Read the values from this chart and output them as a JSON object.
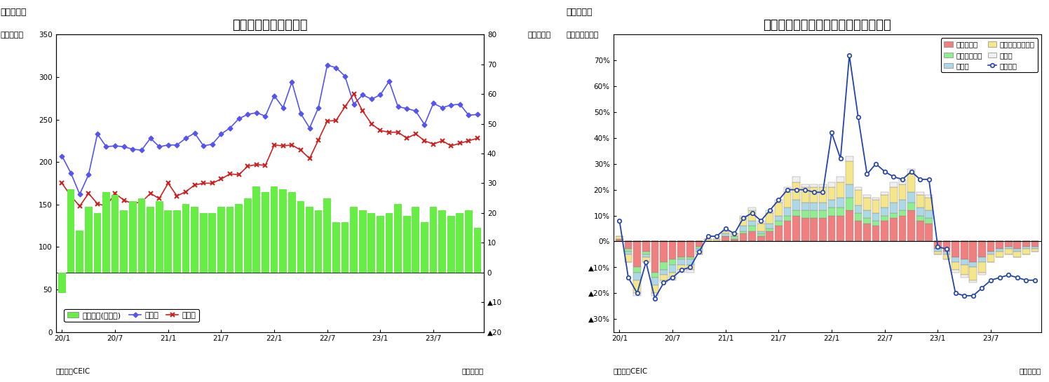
{
  "chart1": {
    "title": "マレーシア　貳易収支",
    "subtitle": "（図表７）",
    "ylabel_left": "（億ドル）",
    "ylabel_right": "（億ドル）",
    "xlabel": "（年／月）",
    "source": "（資料）CEIC",
    "ylim_left": [
      0,
      350
    ],
    "ylim_right": [
      -20,
      80
    ],
    "yticks_left": [
      0,
      50,
      100,
      150,
      200,
      250,
      300,
      350
    ],
    "yticks_right": [
      -20,
      -10,
      0,
      10,
      20,
      30,
      40,
      50,
      60,
      70,
      80
    ],
    "yticklabels_right": [
      "∆ 20",
      "∆ 10",
      "0",
      "10",
      "20",
      "30",
      "40",
      "50",
      "60",
      "70",
      "80"
    ],
    "xtick_positions": [
      0,
      6,
      12,
      18,
      24,
      30,
      36,
      42
    ],
    "xtick_labels": [
      "20/1",
      "20/7",
      "21/1",
      "21/7",
      "22/1",
      "22/7",
      "23/1",
      "23/7"
    ],
    "trade_balance": [
      -7,
      28,
      14,
      22,
      20,
      27,
      26,
      21,
      24,
      25,
      22,
      24,
      21,
      21,
      23,
      22,
      20,
      20,
      22,
      22,
      23,
      25,
      29,
      27,
      29,
      28,
      27,
      24,
      22,
      21,
      25,
      17,
      17,
      22,
      21,
      20,
      19,
      20,
      23,
      19,
      22,
      17,
      22,
      21,
      19,
      20,
      21,
      15
    ],
    "exports": [
      207,
      187,
      162,
      185,
      233,
      218,
      219,
      218,
      215,
      214,
      228,
      218,
      220,
      220,
      228,
      234,
      219,
      221,
      233,
      240,
      251,
      256,
      258,
      254,
      278,
      264,
      294,
      257,
      240,
      264,
      314,
      311,
      301,
      268,
      279,
      274,
      279,
      295,
      265,
      263,
      260,
      244,
      269,
      264,
      267,
      268,
      255,
      256
    ],
    "imports": [
      175,
      160,
      148,
      163,
      151,
      148,
      163,
      155,
      151,
      153,
      163,
      157,
      175,
      160,
      165,
      173,
      175,
      175,
      180,
      186,
      185,
      195,
      197,
      196,
      220,
      219,
      220,
      214,
      204,
      226,
      248,
      249,
      265,
      280,
      260,
      245,
      237,
      235,
      235,
      228,
      233,
      225,
      221,
      225,
      219,
      222,
      225,
      228
    ],
    "bar_color": "#66ee44",
    "export_color": "#5555ee",
    "import_color": "#cc2222",
    "legend_bar": "貳易収支(右目盛)",
    "legend_export": "輸出顕",
    "legend_import": "輸入顕"
  },
  "chart2": {
    "title": "マレーシア　輸出の伸び率（品目別）",
    "subtitle": "（図表８）",
    "ylabel_left": "（前年同月比）",
    "xlabel": "（年／月）",
    "source": "（資料）CEIC",
    "ylim": [
      -35,
      80
    ],
    "yticks": [
      -30,
      -20,
      -10,
      0,
      10,
      20,
      30,
      40,
      50,
      60,
      70
    ],
    "yticklabels": [
      "≆30%",
      "≆20%",
      "≆10%",
      "0%",
      "10%",
      "20%",
      "30%",
      "40%",
      "50%",
      "60%",
      "70%"
    ],
    "xtick_positions": [
      0,
      6,
      12,
      18,
      24,
      30,
      36,
      42
    ],
    "xtick_labels": [
      "20/1",
      "20/7",
      "21/1",
      "21/7",
      "22/1",
      "22/7",
      "23/1",
      "23/7"
    ],
    "mineral_fuels": [
      1,
      -3,
      -10,
      -4,
      -12,
      -8,
      -7,
      -6,
      -6,
      -2,
      0,
      0,
      2,
      1,
      3,
      4,
      2,
      4,
      6,
      8,
      10,
      9,
      9,
      9,
      10,
      10,
      12,
      8,
      7,
      6,
      8,
      9,
      10,
      12,
      8,
      7,
      -3,
      -4,
      -6,
      -7,
      -8,
      -6,
      -4,
      -3,
      -2,
      -3,
      -2,
      -2
    ],
    "animal_veg": [
      0,
      -1,
      -2,
      -1,
      -2,
      -3,
      -2,
      -1,
      -1,
      -1,
      0,
      0,
      0,
      1,
      1,
      2,
      1,
      1,
      2,
      2,
      2,
      3,
      3,
      3,
      3,
      3,
      5,
      3,
      2,
      2,
      2,
      2,
      2,
      3,
      2,
      2,
      0,
      0,
      0,
      0,
      0,
      0,
      0,
      0,
      0,
      0,
      0,
      0
    ],
    "manufactured": [
      0,
      -1,
      -3,
      -1,
      -3,
      -2,
      -3,
      -2,
      -2,
      -1,
      0,
      0,
      1,
      0,
      2,
      2,
      1,
      2,
      2,
      3,
      4,
      3,
      3,
      3,
      3,
      4,
      5,
      3,
      3,
      3,
      3,
      4,
      4,
      4,
      3,
      3,
      -1,
      -1,
      -2,
      -2,
      -2,
      -2,
      -1,
      -1,
      -1,
      -1,
      -1,
      -1
    ],
    "machinery": [
      1,
      -3,
      -5,
      -2,
      -3,
      -2,
      -2,
      -2,
      -2,
      -1,
      1,
      1,
      1,
      1,
      3,
      4,
      3,
      4,
      5,
      6,
      7,
      6,
      6,
      6,
      5,
      6,
      9,
      6,
      5,
      5,
      5,
      6,
      6,
      7,
      5,
      5,
      -1,
      -2,
      -3,
      -4,
      -5,
      -4,
      -3,
      -2,
      -2,
      -2,
      -2,
      -1
    ],
    "other": [
      0,
      0,
      -1,
      0,
      -1,
      -1,
      -1,
      -1,
      -1,
      0,
      0,
      0,
      0,
      0,
      1,
      1,
      1,
      1,
      1,
      2,
      2,
      1,
      1,
      1,
      2,
      2,
      2,
      1,
      1,
      1,
      1,
      2,
      2,
      2,
      1,
      1,
      0,
      0,
      -1,
      -1,
      -1,
      -1,
      0,
      0,
      0,
      0,
      0,
      0
    ],
    "total_export": [
      8,
      -14,
      -20,
      -8,
      -22,
      -16,
      -14,
      -11,
      -10,
      -4,
      2,
      2,
      5,
      3,
      9,
      11,
      8,
      12,
      16,
      20,
      20,
      20,
      19,
      19,
      42,
      32,
      72,
      48,
      26,
      30,
      27,
      25,
      24,
      27,
      24,
      24,
      -2,
      -3,
      -20,
      -21,
      -21,
      -18,
      -15,
      -14,
      -13,
      -14,
      -15,
      -15
    ],
    "mineral_color": "#f08080",
    "animal_color": "#90ee90",
    "manufactured_color": "#add8e6",
    "machinery_color": "#f5e68c",
    "other_color": "#f0f0f0",
    "line_color": "#2244aa",
    "legend_mineral": "鉱物性燃料",
    "legend_animal": "動植物性油脂",
    "legend_manufactured": "製造品",
    "legend_machinery": "機械・輸送用機器",
    "legend_other": "その他",
    "legend_total": "輸出合計"
  }
}
